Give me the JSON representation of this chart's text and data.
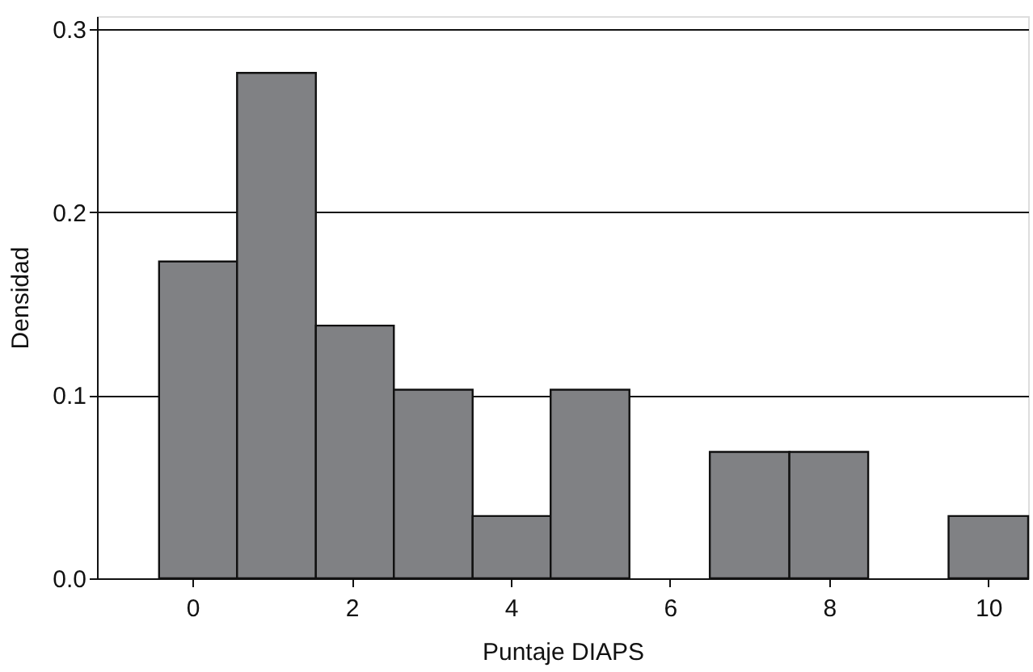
{
  "chart_data": {
    "type": "histogram",
    "xlabel": "Puntaje DIAPS",
    "ylabel": "Densidad",
    "bins": [
      -0.42,
      0.56,
      1.55,
      2.53,
      3.52,
      4.5,
      5.49,
      6.5,
      7.5,
      8.49,
      9.5,
      10.5
    ],
    "values": [
      0.173,
      0.276,
      0.138,
      0.103,
      0.034,
      0.103,
      0,
      0.069,
      0.069,
      0,
      0.034
    ],
    "color": "#808184",
    "xlim": [
      -1.2,
      10.5
    ],
    "xticks": [
      0,
      2,
      4,
      6,
      8,
      10
    ],
    "ylim": [
      0,
      0.307
    ],
    "yticks": [
      {
        "value": 0,
        "label": "0.0"
      },
      0.1,
      0.2,
      0.3
    ],
    "grid": "y"
  }
}
